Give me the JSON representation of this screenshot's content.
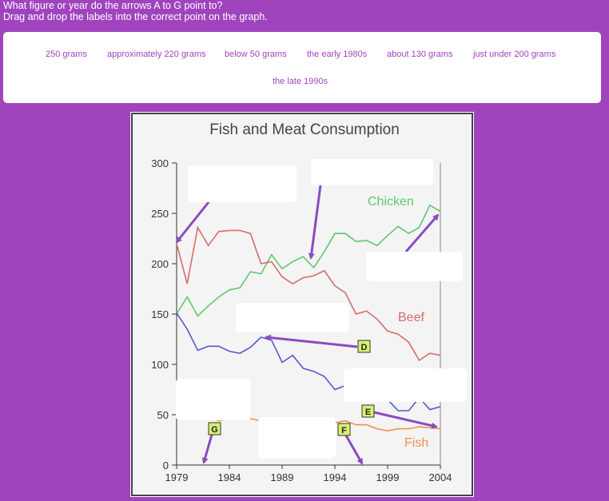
{
  "instructions": {
    "line1": "What figure or year do the arrows A to G point to?",
    "line2": "Drag and drop the labels into the correct point on the graph."
  },
  "labels": [
    "250 grams",
    "approximately 220 grams",
    "below 50 grams",
    "the early 1980s",
    "about 130 grams",
    "just under 200 grams",
    "the late 1990s"
  ],
  "arrow_tags": {
    "d": "D",
    "e": "E",
    "f": "F",
    "g": "G"
  },
  "colors": {
    "background": "#a044be",
    "chicken": "#5fc86e",
    "beef": "#d96b6b",
    "fish": "#f0904a",
    "lamb": "#5858d0",
    "arrow": "#8a4cc0",
    "tag": "#d8f070"
  },
  "chart_data": {
    "type": "line",
    "title": "Fish and Meat Consumption",
    "x_ticks": [
      "1979",
      "1984",
      "1989",
      "1994",
      "1999",
      "2004"
    ],
    "y_ticks": [
      "0",
      "50",
      "100",
      "150",
      "200",
      "250",
      "300"
    ],
    "xlim": [
      1979,
      2004
    ],
    "ylim": [
      0,
      300
    ],
    "series": [
      {
        "name": "Chicken",
        "color": "#5fc86e",
        "x": [
          1979,
          1980,
          1981,
          1982,
          1983,
          1984,
          1985,
          1986,
          1987,
          1988,
          1989,
          1990,
          1991,
          1992,
          1993,
          1994,
          1995,
          1996,
          1997,
          1998,
          1999,
          2000,
          2001,
          2002,
          2003,
          2004
        ],
        "y": [
          150,
          167,
          148,
          158,
          167,
          174,
          176,
          192,
          190,
          209,
          195,
          202,
          207,
          196,
          212,
          230,
          230,
          222,
          223,
          218,
          228,
          237,
          230,
          236,
          258,
          252
        ]
      },
      {
        "name": "Beef",
        "color": "#d96b6b",
        "x": [
          1979,
          1980,
          1981,
          1982,
          1983,
          1984,
          1985,
          1986,
          1987,
          1988,
          1989,
          1990,
          1991,
          1992,
          1993,
          1994,
          1995,
          1996,
          1997,
          1998,
          1999,
          2000,
          2001,
          2002,
          2003,
          2004
        ],
        "y": [
          220,
          180,
          236,
          218,
          232,
          233,
          233,
          230,
          200,
          202,
          187,
          180,
          186,
          188,
          193,
          178,
          171,
          150,
          153,
          145,
          133,
          130,
          122,
          104,
          111,
          109
        ]
      },
      {
        "name": "",
        "color": "#5858d0",
        "x": [
          1979,
          1980,
          1981,
          1982,
          1983,
          1984,
          1985,
          1986,
          1987,
          1988,
          1989,
          1990,
          1991,
          1992,
          1993,
          1994,
          1995,
          1996,
          1997,
          1998,
          1999,
          2000,
          2001,
          2002,
          2003,
          2004
        ],
        "y": [
          151,
          135,
          114,
          118,
          118,
          113,
          111,
          117,
          127,
          124,
          102,
          109,
          96,
          93,
          88,
          75,
          79,
          85,
          77,
          74,
          65,
          54,
          54,
          67,
          55,
          58
        ]
      },
      {
        "name": "Fish",
        "color": "#f0904a",
        "x": [
          1979,
          1980,
          1981,
          1982,
          1983,
          1984,
          1985,
          1986,
          1987,
          1988,
          1989,
          1990,
          1991,
          1992,
          1993,
          1994,
          1995,
          1996,
          1997,
          1998,
          1999,
          2000,
          2001,
          2002,
          2003,
          2004
        ],
        "y": [
          58,
          56,
          46,
          47,
          44,
          46,
          45,
          46,
          44,
          44,
          44,
          43,
          43,
          45,
          42,
          42,
          44,
          40,
          40,
          36,
          34,
          36,
          36,
          38,
          37,
          36
        ]
      }
    ]
  }
}
